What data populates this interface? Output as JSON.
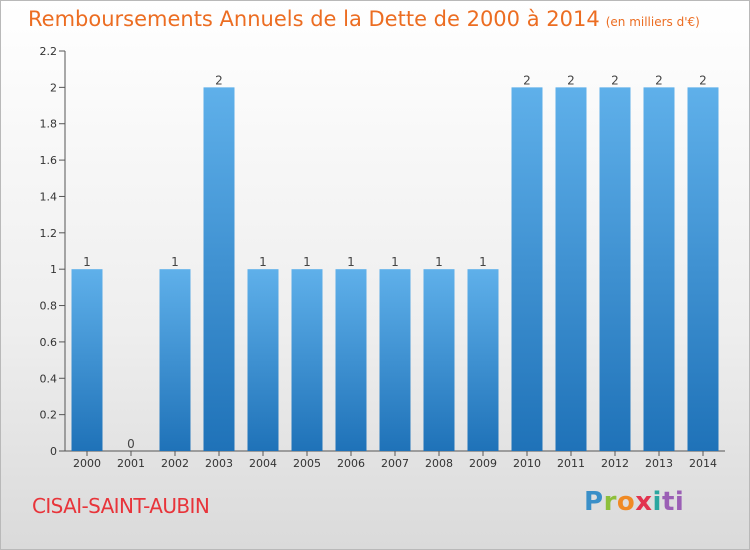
{
  "chart_data": {
    "type": "bar",
    "title": "Remboursements Annuels de la Dette de 2000 à 2014",
    "unit_note": "(en milliers d'€)",
    "categories": [
      "2000",
      "2001",
      "2002",
      "2003",
      "2004",
      "2005",
      "2006",
      "2007",
      "2008",
      "2009",
      "2010",
      "2011",
      "2012",
      "2013",
      "2014"
    ],
    "values": [
      1,
      0,
      1,
      2,
      1,
      1,
      1,
      1,
      1,
      1,
      2,
      2,
      2,
      2,
      2
    ],
    "data_labels": [
      "1",
      "0",
      "1",
      "2",
      "1",
      "1",
      "1",
      "1",
      "1",
      "1",
      "2",
      "2",
      "2",
      "2",
      "2"
    ],
    "y_ticks": [
      0,
      0.2,
      0.4,
      0.6,
      0.8,
      1,
      1.2,
      1.4,
      1.6,
      1.8,
      2,
      2.2
    ],
    "y_tick_labels": [
      "0",
      "0.2",
      "0.4",
      "0.6",
      "0.8",
      "1",
      "1.2",
      "1.4",
      "1.6",
      "1.8",
      "2",
      "2.2"
    ],
    "ylim": [
      0,
      2.2
    ],
    "xlabel": "",
    "ylabel": "",
    "grid": false,
    "colors": {
      "bar_top": "#5fb0ea",
      "bar_bottom": "#1f72b8",
      "title": "#ec6d22"
    }
  },
  "footer": {
    "city": "CISAI-SAINT-AUBIN",
    "logo_parts": [
      "P",
      "r",
      "o",
      "x",
      "i",
      "ti"
    ]
  }
}
